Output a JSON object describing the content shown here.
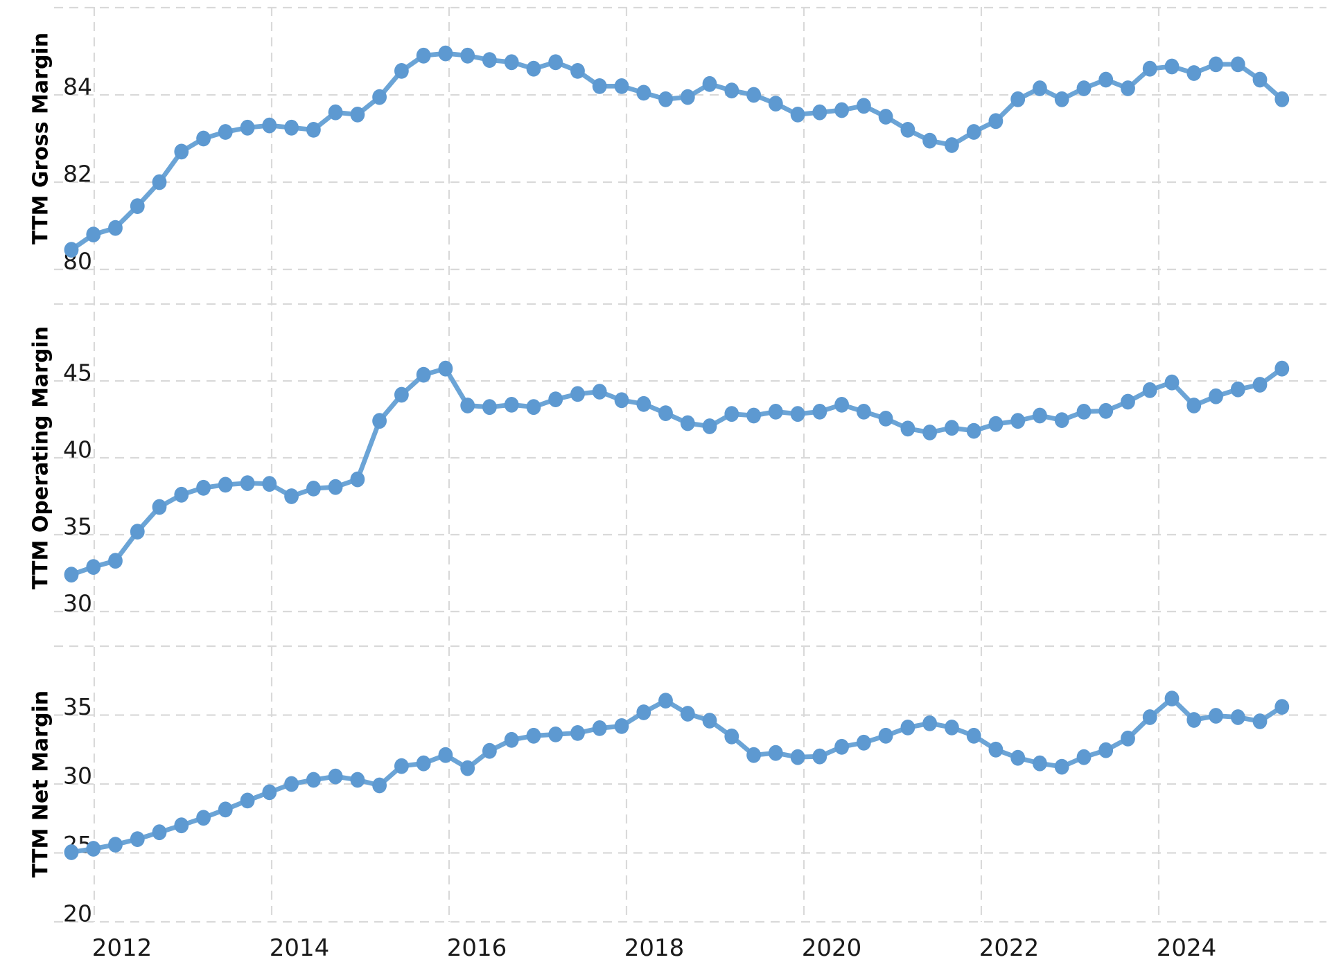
{
  "chart_data": {
    "type": "line",
    "title": "",
    "x_label": "",
    "legend": "none",
    "grid": "dashed",
    "series_color": "#5d99d1",
    "line_color": "#6ba4d6",
    "gridline_color": "#d9d9d9",
    "x_tick_years": [
      2012,
      2014,
      2016,
      2018,
      2020,
      2022,
      2024
    ],
    "x_range_years": [
      2011.5,
      2025.9
    ],
    "x": [
      2011.75,
      2012.0,
      2012.25,
      2012.5,
      2012.75,
      2013.0,
      2013.25,
      2013.5,
      2013.75,
      2014.0,
      2014.25,
      2014.5,
      2014.75,
      2015.0,
      2015.25,
      2015.5,
      2015.75,
      2016.0,
      2016.25,
      2016.5,
      2016.75,
      2017.0,
      2017.25,
      2017.5,
      2017.75,
      2018.0,
      2018.25,
      2018.5,
      2018.75,
      2019.0,
      2019.25,
      2019.5,
      2019.75,
      2020.0,
      2020.25,
      2020.5,
      2020.75,
      2021.0,
      2021.25,
      2021.5,
      2021.75,
      2022.0,
      2022.25,
      2022.5,
      2022.75,
      2023.0,
      2023.25,
      2023.5,
      2023.75,
      2024.0,
      2024.25,
      2024.5,
      2024.75,
      2025.0,
      2025.25,
      2025.5
    ],
    "panels": [
      {
        "id": "gross",
        "ylabel": "TTM Gross Margin",
        "ylim": [
          79.1,
          86.3
        ],
        "yticks_labeled": [
          84,
          82,
          80
        ],
        "yticks_all": [
          86,
          84,
          82,
          80
        ],
        "values": [
          80.45,
          80.8,
          80.95,
          81.45,
          82.0,
          82.7,
          83.0,
          83.15,
          83.25,
          83.3,
          83.25,
          83.2,
          83.6,
          83.55,
          83.95,
          84.55,
          84.9,
          84.95,
          84.9,
          84.8,
          84.75,
          84.6,
          84.75,
          84.55,
          84.2,
          84.2,
          84.05,
          83.9,
          83.95,
          84.25,
          84.1,
          84.0,
          83.8,
          83.55,
          83.6,
          83.65,
          83.75,
          83.5,
          83.2,
          82.95,
          82.85,
          83.15,
          83.4,
          83.9,
          84.15,
          83.9,
          84.15,
          84.35,
          84.15,
          84.6,
          84.65,
          84.5,
          84.7,
          84.7,
          84.35,
          83.9
        ]
      },
      {
        "id": "operating",
        "ylabel": "TTM Operating Margin",
        "ylim": [
          28.0,
          50.5
        ],
        "yticks_labeled": [
          45,
          40,
          35,
          30
        ],
        "yticks_all": [
          50,
          45,
          40,
          35,
          30
        ],
        "values": [
          32.4,
          32.9,
          33.3,
          35.2,
          36.8,
          37.6,
          38.05,
          38.25,
          38.35,
          38.3,
          37.5,
          38.0,
          38.1,
          38.6,
          42.4,
          44.1,
          45.4,
          45.8,
          43.4,
          43.3,
          43.45,
          43.3,
          43.8,
          44.15,
          44.3,
          43.75,
          43.5,
          42.9,
          42.25,
          42.05,
          42.85,
          42.75,
          43.0,
          42.85,
          43.0,
          43.45,
          43.0,
          42.55,
          41.9,
          41.65,
          41.95,
          41.75,
          42.2,
          42.4,
          42.75,
          42.45,
          43.0,
          43.05,
          43.65,
          44.4,
          44.9,
          43.4,
          44.0,
          44.45,
          44.75,
          45.8
        ]
      },
      {
        "id": "net",
        "ylabel": "TTM Net Margin",
        "ylim": [
          18.5,
          40.3
        ],
        "yticks_labeled": [
          35,
          30,
          25,
          20
        ],
        "yticks_all": [
          40,
          35,
          30,
          25,
          20
        ],
        "values": [
          25.05,
          25.3,
          25.6,
          26.0,
          26.5,
          27.0,
          27.55,
          28.15,
          28.8,
          29.4,
          30.0,
          30.3,
          30.55,
          30.3,
          29.9,
          31.3,
          31.5,
          32.1,
          31.15,
          32.4,
          33.2,
          33.5,
          33.6,
          33.7,
          34.05,
          34.2,
          35.2,
          36.05,
          35.1,
          34.6,
          33.45,
          32.1,
          32.25,
          31.95,
          32.0,
          32.7,
          33.0,
          33.5,
          34.1,
          34.4,
          34.1,
          33.5,
          32.5,
          31.9,
          31.5,
          31.25,
          31.95,
          32.45,
          33.3,
          34.85,
          36.2,
          34.65,
          34.95,
          34.85,
          34.55,
          35.6
        ]
      }
    ]
  }
}
